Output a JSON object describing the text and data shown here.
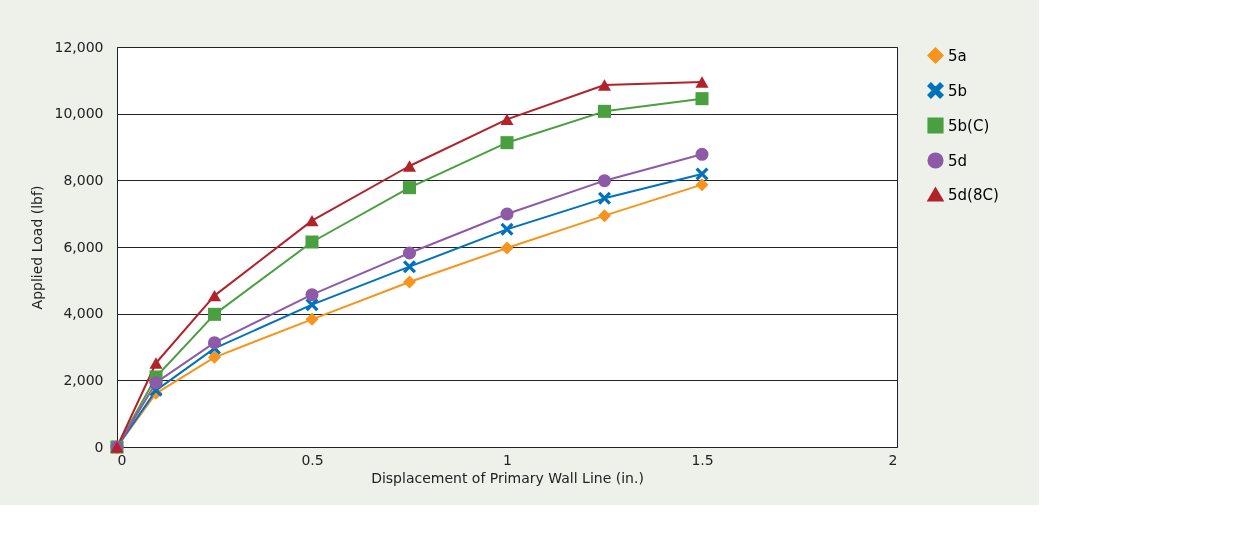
{
  "chart_data": {
    "type": "line",
    "xlabel": "Displacement of Primary Wall Line (in.)",
    "ylabel": "Applied Load (lbf)",
    "x": [
      0,
      0.1,
      0.25,
      0.5,
      0.75,
      1,
      1.25,
      1.5
    ],
    "series": [
      {
        "name": "5a",
        "color": "#f7941d",
        "marker": "diamond",
        "values": [
          0,
          1610,
          2690,
          3830,
          4950,
          5970,
          6940,
          7870
        ]
      },
      {
        "name": "5b",
        "color": "#0072bc",
        "marker": "cross",
        "values": [
          0,
          1700,
          2960,
          4270,
          5410,
          6530,
          7460,
          8190
        ]
      },
      {
        "name": "5b(C)",
        "color": "#4aa040",
        "marker": "square",
        "values": [
          0,
          2100,
          3980,
          6150,
          7780,
          9130,
          10070,
          10450
        ]
      },
      {
        "name": "5d",
        "color": "#8e5aa8",
        "marker": "circle",
        "values": [
          0,
          1930,
          3130,
          4570,
          5820,
          6990,
          7990,
          8780
        ]
      },
      {
        "name": "5d(8C)",
        "color": "#b2222a",
        "marker": "triangle",
        "values": [
          0,
          2520,
          4540,
          6790,
          8430,
          9830,
          10860,
          10950
        ]
      }
    ],
    "xlim": [
      0,
      2
    ],
    "xticks": [
      0,
      0.5,
      1,
      1.5,
      2
    ],
    "ylim": [
      0,
      12000
    ],
    "yticks": [
      {
        "value": 0,
        "label": "0"
      },
      {
        "value": 2000,
        "label": "2,000"
      },
      {
        "value": 4000,
        "label": "4,000"
      },
      {
        "value": 6000,
        "label": "6,000"
      },
      {
        "value": 8000,
        "label": "8,000"
      },
      {
        "value": 10000,
        "label": "10,000"
      },
      {
        "value": 12000,
        "label": "12,000"
      }
    ],
    "grid": "y",
    "legend": "right",
    "line_style": "solid"
  }
}
